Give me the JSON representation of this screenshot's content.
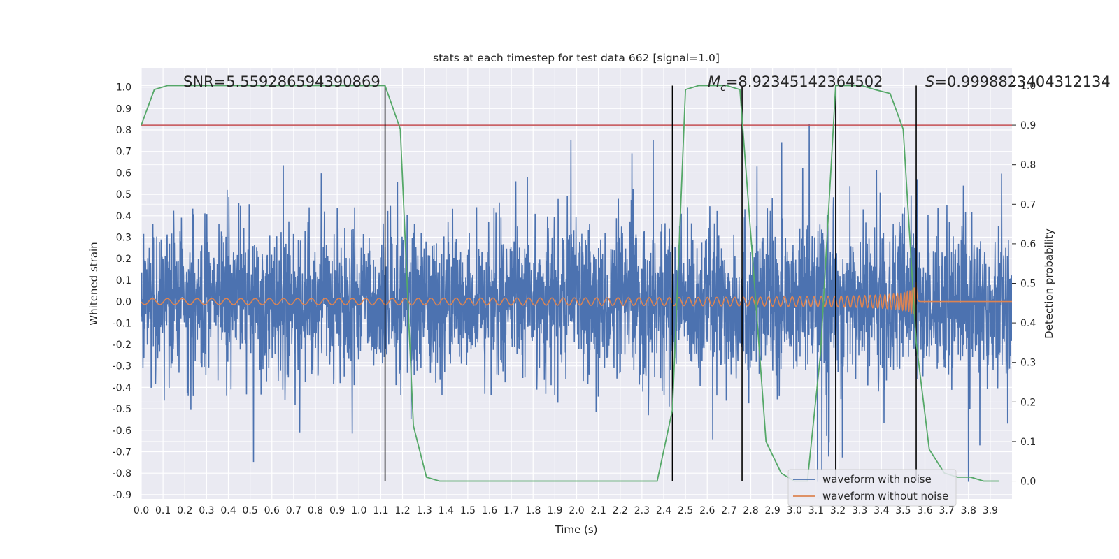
{
  "chart_data": {
    "type": "line",
    "title": "stats at each timestep for test data 662 [signal=1.0]",
    "xlabel": "Time (s)",
    "ylabel": "Whitened strain",
    "ylabel_right": "Detection probability",
    "xlim": [
      0.0,
      4.0
    ],
    "ylim": [
      -0.92,
      1.09
    ],
    "ylim_right": [
      -0.045,
      1.045
    ],
    "x_ticks": [
      "0.0",
      "0.1",
      "0.2",
      "0.3",
      "0.4",
      "0.5",
      "0.6",
      "0.7",
      "0.8",
      "0.9",
      "1.0",
      "1.1",
      "1.2",
      "1.3",
      "1.4",
      "1.5",
      "1.6",
      "1.7",
      "1.8",
      "1.9",
      "2.0",
      "2.1",
      "2.2",
      "2.3",
      "2.4",
      "2.5",
      "2.6",
      "2.7",
      "2.8",
      "2.9",
      "3.0",
      "3.1",
      "3.2",
      "3.3",
      "3.4",
      "3.5",
      "3.6",
      "3.7",
      "3.8",
      "3.9"
    ],
    "y_ticks": [
      "1.0",
      "0.9",
      "0.8",
      "0.7",
      "0.6",
      "0.5",
      "0.4",
      "0.3",
      "0.2",
      "0.1",
      "0.0",
      "-0.1",
      "-0.2",
      "-0.3",
      "-0.4",
      "-0.5",
      "-0.6",
      "-0.7",
      "-0.8",
      "-0.9"
    ],
    "y_ticks_right": [
      "1.0",
      "0.9",
      "0.8",
      "0.7",
      "0.6",
      "0.5",
      "0.4",
      "0.3",
      "0.2",
      "0.1",
      "0.0"
    ],
    "grid": true,
    "legend_position": "lower-right",
    "annotations": {
      "snr": "SNR=5.559286594390869",
      "mc_symbol": "M",
      "mc_sub": "c",
      "mc_value": "=8.92345142364502",
      "s_symbol": "S",
      "s_value": "=0.9998823404312134"
    },
    "vertical_lines_x": [
      1.12,
      2.44,
      2.76,
      3.19,
      3.56
    ],
    "threshold": {
      "value": 0.9,
      "axis": "right",
      "color": "#c44e52"
    },
    "series": [
      {
        "name": "waveform with noise",
        "color": "#4c72b0",
        "axis": "left",
        "sample_rate": 2048,
        "amplitude_envelope": [
          -0.84,
          1.0
        ],
        "description_values": "dense noise, std ~0.18"
      },
      {
        "name": "waveform without noise",
        "color": "#dd8452",
        "axis": "left",
        "merger_time": 3.56,
        "peak_amplitude": 0.19
      },
      {
        "color": "#55a868",
        "axis": "right",
        "x": [
          0.0,
          0.06,
          0.12,
          0.19,
          0.25,
          0.31,
          0.37,
          0.44,
          0.5,
          0.56,
          0.62,
          0.69,
          0.75,
          0.81,
          0.87,
          0.94,
          1.0,
          1.06,
          1.12,
          1.19,
          1.25,
          1.31,
          1.37,
          1.44,
          1.5,
          1.56,
          1.62,
          1.69,
          1.75,
          1.81,
          1.87,
          1.94,
          2.0,
          2.06,
          2.12,
          2.19,
          2.25,
          2.31,
          2.37,
          2.44,
          2.5,
          2.56,
          2.62,
          2.69,
          2.75,
          2.81,
          2.87,
          2.94,
          3.0,
          3.06,
          3.12,
          3.19,
          3.25,
          3.31,
          3.37,
          3.44,
          3.5,
          3.56,
          3.62,
          3.69,
          3.75,
          3.81,
          3.87,
          3.94
        ],
        "values": [
          0.9,
          0.99,
          1.0,
          1.0,
          1.0,
          1.0,
          1.0,
          1.0,
          1.0,
          1.0,
          1.0,
          1.0,
          1.0,
          1.0,
          1.0,
          1.0,
          1.0,
          1.0,
          1.0,
          0.89,
          0.14,
          0.01,
          0.0,
          0.0,
          0.0,
          0.0,
          0.0,
          0.0,
          0.0,
          0.0,
          0.0,
          0.0,
          0.0,
          0.0,
          0.0,
          0.0,
          0.0,
          0.0,
          0.0,
          0.18,
          0.99,
          1.0,
          1.0,
          1.0,
          0.99,
          0.55,
          0.1,
          0.02,
          0.0,
          0.0,
          0.32,
          1.0,
          1.0,
          1.0,
          0.99,
          0.98,
          0.89,
          0.35,
          0.08,
          0.02,
          0.01,
          0.01,
          0.0,
          0.0
        ]
      }
    ]
  }
}
